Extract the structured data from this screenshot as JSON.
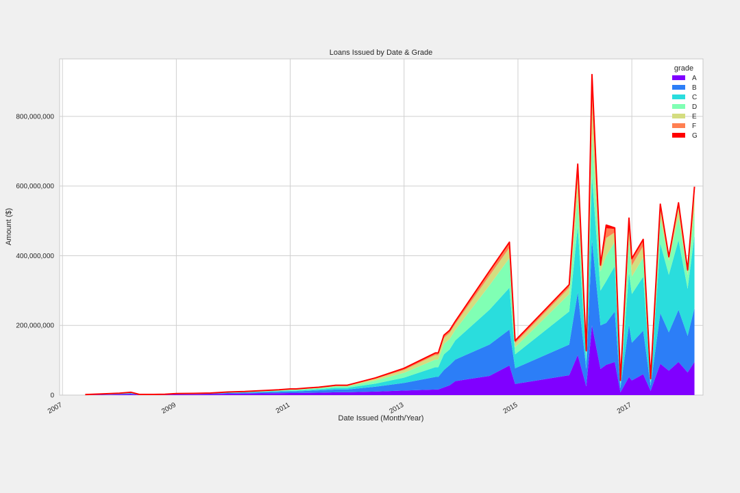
{
  "chart_data": {
    "type": "area",
    "stacked": true,
    "title": "Loans Issued by Date & Grade",
    "xlabel": "Date Issued (Month/Year)",
    "ylabel": "Amount ($)",
    "x_ticks": [
      "2007",
      "2009",
      "2011",
      "2013",
      "2015",
      "2017"
    ],
    "y_ticks": [
      "0",
      "200,000,000",
      "400,000,000",
      "600,000,000",
      "800,000,000"
    ],
    "y_tick_values": [
      0,
      200000000,
      400000000,
      600000000,
      800000000
    ],
    "xlim": [
      2006.95,
      2018.25
    ],
    "ylim": [
      0,
      965000000
    ],
    "grid": true,
    "legend": {
      "title": "grade",
      "position": "top-right"
    },
    "total_line_color": "#ff0000",
    "x": [
      2007.4,
      2007.7,
      2008.0,
      2008.2,
      2008.35,
      2008.6,
      2008.8,
      2009.0,
      2009.3,
      2009.6,
      2009.9,
      2010.2,
      2010.5,
      2010.8,
      2011.0,
      2011.1,
      2011.3,
      2011.5,
      2011.7,
      2011.8,
      2012.0,
      2012.5,
      2013.0,
      2013.55,
      2013.6,
      2013.7,
      2013.8,
      2013.9,
      2014.5,
      2014.85,
      2014.95,
      2015.9,
      2016.05,
      2016.2,
      2016.3,
      2016.45,
      2016.55,
      2016.7,
      2016.8,
      2016.95,
      2017.0,
      2017.2,
      2017.33,
      2017.5,
      2017.65,
      2017.82,
      2017.98,
      2018.1
    ],
    "series": [
      {
        "name": "A",
        "color": "#8000ff",
        "values": [
          0.5,
          1.0,
          2.0,
          3.0,
          1.0,
          1.0,
          1.5,
          2.0,
          2.5,
          3.0,
          4.0,
          4.5,
          5.0,
          5.5,
          6.0,
          6.0,
          6.5,
          7.0,
          7.5,
          8.0,
          8.0,
          10,
          13,
          16,
          16,
          22,
          28,
          40,
          55,
          85,
          32,
          57,
          115,
          25,
          200,
          75,
          87,
          95,
          8,
          52,
          42,
          60,
          12,
          90,
          70,
          95,
          65,
          95
        ]
      },
      {
        "name": "B",
        "color": "#2c7ef7",
        "values": [
          0.5,
          1.0,
          1.5,
          2.0,
          0.5,
          0.5,
          0.5,
          1.0,
          1.0,
          1.5,
          2.0,
          2.5,
          3.0,
          4.0,
          4.5,
          4.5,
          5.5,
          6.5,
          7.5,
          8.0,
          8.0,
          14,
          22,
          36,
          36,
          50,
          58,
          62,
          90,
          103,
          45,
          88,
          180,
          50,
          245,
          125,
          120,
          145,
          12,
          150,
          108,
          125,
          15,
          145,
          110,
          150,
          105,
          155
        ]
      },
      {
        "name": "C",
        "color": "#2adddd",
        "values": [
          0.2,
          0.5,
          0.5,
          1.0,
          0.2,
          0.2,
          0.2,
          0.5,
          0.5,
          0.5,
          1.0,
          1.0,
          1.5,
          2.0,
          2.5,
          2.5,
          3.0,
          3.5,
          4.5,
          5.0,
          5.0,
          9,
          15,
          28,
          28,
          45,
          45,
          55,
          100,
          120,
          40,
          95,
          190,
          25,
          185,
          100,
          120,
          130,
          10,
          150,
          140,
          155,
          10,
          200,
          165,
          200,
          135,
          210
        ]
      },
      {
        "name": "D",
        "color": "#80ffb4",
        "values": [
          0.2,
          0.5,
          0.5,
          1.0,
          0.2,
          0.2,
          0.2,
          0.5,
          0.5,
          0.5,
          1.0,
          1.0,
          1.5,
          2.0,
          2.5,
          2.5,
          3.0,
          3.0,
          3.5,
          4.0,
          4.0,
          9,
          14,
          22,
          22,
          30,
          30,
          30,
          70,
          85,
          20,
          50,
          85,
          15,
          120,
          55,
          72,
          70,
          7,
          95,
          50,
          55,
          5,
          70,
          40,
          65,
          40,
          70
        ]
      },
      {
        "name": "E",
        "color": "#d4dd80",
        "values": [
          0.1,
          0.2,
          0.5,
          0.5,
          0.1,
          0.1,
          0.1,
          0.2,
          0.2,
          0.2,
          0.5,
          0.5,
          1.0,
          1.0,
          1.5,
          1.5,
          1.5,
          1.5,
          2.0,
          2.0,
          2.0,
          5,
          8,
          13,
          13,
          17,
          17,
          17,
          28,
          30,
          12,
          18,
          55,
          8,
          100,
          13,
          52,
          27,
          3,
          40,
          32,
          33,
          3,
          30,
          8,
          30,
          10,
          45
        ]
      },
      {
        "name": "F",
        "color": "#ff8052",
        "values": [
          0.1,
          0.2,
          0.2,
          0.5,
          0.0,
          0.0,
          0.0,
          0.1,
          0.2,
          0.2,
          0.2,
          0.5,
          0.5,
          0.5,
          0.5,
          0.5,
          0.8,
          0.8,
          1.0,
          1.0,
          1.0,
          2.0,
          4.0,
          4.5,
          4.5,
          6,
          6,
          6,
          10,
          12,
          5,
          7,
          28,
          3,
          50,
          4,
          28,
          10,
          1,
          16,
          16,
          15,
          1,
          10,
          3,
          10,
          3,
          15
        ]
      },
      {
        "name": "G",
        "color": "#ff0000",
        "values": [
          0.0,
          0.1,
          0.1,
          0.2,
          0.0,
          0.0,
          0.0,
          0.1,
          0.1,
          0.1,
          0.1,
          0.2,
          0.2,
          0.2,
          0.2,
          0.2,
          0.2,
          0.2,
          0.3,
          0.3,
          0.3,
          0.5,
          1.0,
          1.5,
          1.5,
          2,
          2,
          2,
          3,
          4,
          2,
          2,
          10,
          1,
          20,
          1,
          9,
          3,
          1,
          5,
          4,
          4,
          1,
          3,
          1,
          2,
          1,
          8
        ]
      }
    ],
    "value_unit": 1000000
  }
}
